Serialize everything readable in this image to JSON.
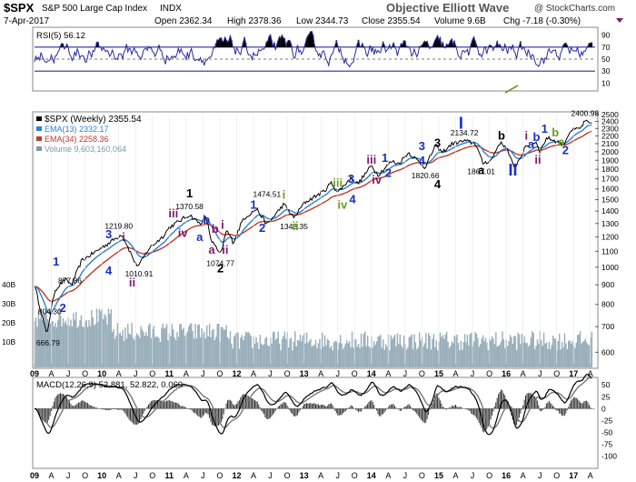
{
  "header": {
    "symbol": "$SPX",
    "name": "S&P 500 Large Cap Index",
    "exchange": "INDX",
    "brand": "Objective Elliott Wave",
    "date": "7-Apr-2017",
    "open_label": "Open",
    "open": "2362.34",
    "high_label": "High",
    "high": "2378.36",
    "low_label": "Low",
    "low": "2344.73",
    "close_label": "Close",
    "close": "2355.54",
    "volume_label": "Volume",
    "volume": "9.6B",
    "chg_label": "Chg",
    "chg": "-7.18 (-0.30%)",
    "copyright": "@ StockCharts.com"
  },
  "colors": {
    "price": "#000000",
    "ema13": "#2f7fd1",
    "ema34": "#c0392b",
    "volume": "#7d98a8",
    "rsi": "#2b2b9e",
    "macd": "#000000",
    "signal": "#777777",
    "hist": "#333333",
    "wave_blue": "#1a2fbf",
    "wave_purple": "#7d1a6e",
    "wave_green": "#6b9e1f",
    "wave_black": "#000000"
  },
  "chart_data": [
    {
      "type": "line",
      "panel": "rsi",
      "title": "RSI(5) 56.12",
      "ylim": [
        0,
        100
      ],
      "y_ticks": [
        10,
        30,
        50,
        70,
        90
      ],
      "overbought": 70,
      "oversold": 30,
      "series": [
        {
          "name": "RSI(5)",
          "last": 56.12
        }
      ]
    },
    {
      "type": "line",
      "panel": "price",
      "title": "$SPX (Weekly) 2355.54",
      "log_scale": true,
      "ylim": [
        560,
        2500
      ],
      "y_ticks": [
        600,
        700,
        800,
        900,
        1000,
        1100,
        1200,
        1300,
        1400,
        1500,
        1600,
        1700,
        1800,
        1900,
        2000,
        2100,
        2200,
        2300,
        2400,
        2500
      ],
      "volume_ticks": [
        "40B",
        "30B",
        "20B",
        "10B"
      ],
      "x_ticks": [
        "09",
        "A",
        "J",
        "O",
        "10",
        "A",
        "J",
        "O",
        "11",
        "A",
        "J",
        "O",
        "12",
        "A",
        "J",
        "O",
        "13",
        "A",
        "J",
        "O",
        "14",
        "A",
        "J",
        "O",
        "15",
        "A",
        "J",
        "O",
        "16",
        "A",
        "J",
        "O",
        "17",
        "A"
      ],
      "x_range": [
        2009.0,
        2017.32
      ],
      "legend": [
        {
          "text": "$SPX (Weekly) 2355.54"
        },
        {
          "text": "EMA(13) 2332.17"
        },
        {
          "text": "EMA(34) 2258.36"
        },
        {
          "text": "Volume 9,603,160,064"
        }
      ],
      "series": [
        {
          "name": "$SPX (Weekly)",
          "points": [
            [
              2009.0,
              900
            ],
            [
              2009.18,
              666.79
            ],
            [
              2009.3,
              870
            ],
            [
              2009.45,
              930
            ],
            [
              2009.55,
              900
            ],
            [
              2009.7,
              1040
            ],
            [
              2009.95,
              1110
            ],
            [
              2010.3,
              1219.8
            ],
            [
              2010.5,
              1020
            ],
            [
              2010.55,
              1010.91
            ],
            [
              2010.7,
              1120
            ],
            [
              2010.9,
              1200
            ],
            [
              2011.0,
              1270
            ],
            [
              2011.3,
              1370.58
            ],
            [
              2011.45,
              1300
            ],
            [
              2011.55,
              1345
            ],
            [
              2011.62,
              1180
            ],
            [
              2011.76,
              1074.77
            ],
            [
              2011.85,
              1250
            ],
            [
              2011.95,
              1160
            ],
            [
              2012.1,
              1340
            ],
            [
              2012.3,
              1419
            ],
            [
              2012.45,
              1290
            ],
            [
              2012.7,
              1460
            ],
            [
              2012.85,
              1343.35
            ],
            [
              2013.0,
              1470
            ],
            [
              2013.3,
              1580
            ],
            [
              2013.4,
              1660
            ],
            [
              2013.5,
              1570
            ],
            [
              2013.7,
              1710
            ],
            [
              2013.8,
              1650
            ],
            [
              2014.0,
              1840
            ],
            [
              2014.1,
              1740
            ],
            [
              2014.3,
              1890
            ],
            [
              2014.4,
              1860
            ],
            [
              2014.55,
              1990
            ],
            [
              2014.8,
              1820.66
            ],
            [
              2014.95,
              2080
            ],
            [
              2015.05,
              1990
            ],
            [
              2015.2,
              2100
            ],
            [
              2015.38,
              2134.72
            ],
            [
              2015.55,
              2100
            ],
            [
              2015.65,
              1867.01
            ],
            [
              2015.78,
              1900
            ],
            [
              2015.9,
              2110
            ],
            [
              2016.0,
              2060
            ],
            [
              2016.12,
              1810
            ],
            [
              2016.3,
              2070
            ],
            [
              2016.45,
              2120
            ],
            [
              2016.5,
              2000
            ],
            [
              2016.6,
              2175
            ],
            [
              2016.75,
              2130
            ],
            [
              2016.85,
              2080
            ],
            [
              2016.95,
              2270
            ],
            [
              2017.1,
              2300
            ],
            [
              2017.17,
              2400.98
            ],
            [
              2017.27,
              2355.54
            ]
          ]
        },
        {
          "name": "EMA(13)",
          "last": 2332.17
        },
        {
          "name": "EMA(34)",
          "last": 2258.36
        }
      ],
      "annotations": [
        "877.86",
        "804.30",
        "666.79",
        "1219.80",
        "1010.91",
        "1370.58",
        "1074.77",
        "1474.51",
        "1343.35",
        "1820.66",
        "2134.72",
        "1867.01",
        "2400.98"
      ],
      "wave_labels": [
        {
          "text": "1",
          "x": 2009.32,
          "y": 1010,
          "color": "wave_blue"
        },
        {
          "text": "2",
          "x": 2009.42,
          "y": 765,
          "color": "wave_blue"
        },
        {
          "text": "3",
          "x": 2010.1,
          "y": 1190,
          "color": "wave_blue"
        },
        {
          "text": "4",
          "x": 2010.1,
          "y": 955,
          "color": "wave_blue"
        },
        {
          "text": "i",
          "x": 2010.32,
          "y": 1170,
          "color": "wave_purple"
        },
        {
          "text": "ii",
          "x": 2010.45,
          "y": 890,
          "color": "wave_purple"
        },
        {
          "text": "iii",
          "x": 2011.06,
          "y": 1350,
          "color": "wave_purple"
        },
        {
          "text": "iv",
          "x": 2011.2,
          "y": 1200,
          "color": "wave_purple"
        },
        {
          "text": "1",
          "x": 2011.3,
          "y": 1520,
          "color": "wave_black"
        },
        {
          "text": "b",
          "x": 2011.55,
          "y": 1300,
          "color": "wave_blue"
        },
        {
          "text": "a",
          "x": 2011.45,
          "y": 1170,
          "color": "wave_blue"
        },
        {
          "text": "b",
          "x": 2011.68,
          "y": 1230,
          "color": "wave_purple"
        },
        {
          "text": "i",
          "x": 2011.79,
          "y": 1260,
          "color": "wave_purple"
        },
        {
          "text": "a",
          "x": 2011.63,
          "y": 1085,
          "color": "wave_purple"
        },
        {
          "text": "ii",
          "x": 2011.83,
          "y": 1085,
          "color": "wave_purple"
        },
        {
          "text": "2",
          "x": 2011.76,
          "y": 970,
          "color": "wave_black"
        },
        {
          "text": "1",
          "x": 2012.25,
          "y": 1420,
          "color": "wave_blue"
        },
        {
          "text": "2",
          "x": 2012.38,
          "y": 1235,
          "color": "wave_blue"
        },
        {
          "text": "i",
          "x": 2012.7,
          "y": 1510,
          "color": "wave_green"
        },
        {
          "text": "ii",
          "x": 2012.87,
          "y": 1250,
          "color": "wave_green"
        },
        {
          "text": "iii",
          "x": 2013.5,
          "y": 1620,
          "color": "wave_green"
        },
        {
          "text": "iv",
          "x": 2013.57,
          "y": 1420,
          "color": "wave_green"
        },
        {
          "text": "3",
          "x": 2013.7,
          "y": 1660,
          "color": "wave_blue"
        },
        {
          "text": "4",
          "x": 2013.72,
          "y": 1470,
          "color": "wave_blue"
        },
        {
          "text": "iii",
          "x": 2014.0,
          "y": 1860,
          "color": "wave_purple"
        },
        {
          "text": "iv",
          "x": 2014.08,
          "y": 1650,
          "color": "wave_purple"
        },
        {
          "text": "1",
          "x": 2014.2,
          "y": 1880,
          "color": "wave_blue"
        },
        {
          "text": "2",
          "x": 2014.25,
          "y": 1720,
          "color": "wave_blue"
        },
        {
          "text": "3",
          "x": 2014.75,
          "y": 2020,
          "color": "wave_blue"
        },
        {
          "text": "4",
          "x": 2014.75,
          "y": 1850,
          "color": "wave_blue"
        },
        {
          "text": "3",
          "x": 2014.98,
          "y": 2060,
          "color": "wave_black"
        },
        {
          "text": "4",
          "x": 2014.98,
          "y": 1605,
          "color": "wave_black"
        },
        {
          "text": "I",
          "x": 2015.33,
          "y": 2300,
          "color": "wave_blue"
        },
        {
          "text": "b",
          "x": 2015.93,
          "y": 2150,
          "color": "wave_black"
        },
        {
          "text": "a",
          "x": 2015.63,
          "y": 1750,
          "color": "wave_black"
        },
        {
          "text": "II",
          "x": 2016.1,
          "y": 1735,
          "color": "wave_blue"
        },
        {
          "text": "i",
          "x": 2016.3,
          "y": 2150,
          "color": "wave_purple"
        },
        {
          "text": "ii",
          "x": 2016.47,
          "y": 1860,
          "color": "wave_purple"
        },
        {
          "text": "1",
          "x": 2016.57,
          "y": 2240,
          "color": "wave_blue"
        },
        {
          "text": "b",
          "x": 2016.45,
          "y": 2135,
          "color": "wave_blue"
        },
        {
          "text": "a",
          "x": 2016.37,
          "y": 2045,
          "color": "wave_blue"
        },
        {
          "text": "b",
          "x": 2016.73,
          "y": 2195,
          "color": "wave_green"
        },
        {
          "text": "a",
          "x": 2016.82,
          "y": 2070,
          "color": "wave_green"
        },
        {
          "text": "2",
          "x": 2016.88,
          "y": 1970,
          "color": "wave_blue"
        }
      ]
    },
    {
      "type": "line",
      "panel": "macd",
      "title": "MACD(12,26,9) 52.881, 52.822, 0.060",
      "ylim": [
        -120,
        60
      ],
      "y_ticks": [
        50,
        25,
        0,
        -25,
        -50,
        -75,
        -100
      ],
      "series": [
        {
          "name": "MACD(12,26,9)",
          "last": 52.881
        },
        {
          "name": "Signal",
          "last": 52.822
        },
        {
          "name": "Histogram",
          "last": 0.06
        }
      ]
    }
  ]
}
